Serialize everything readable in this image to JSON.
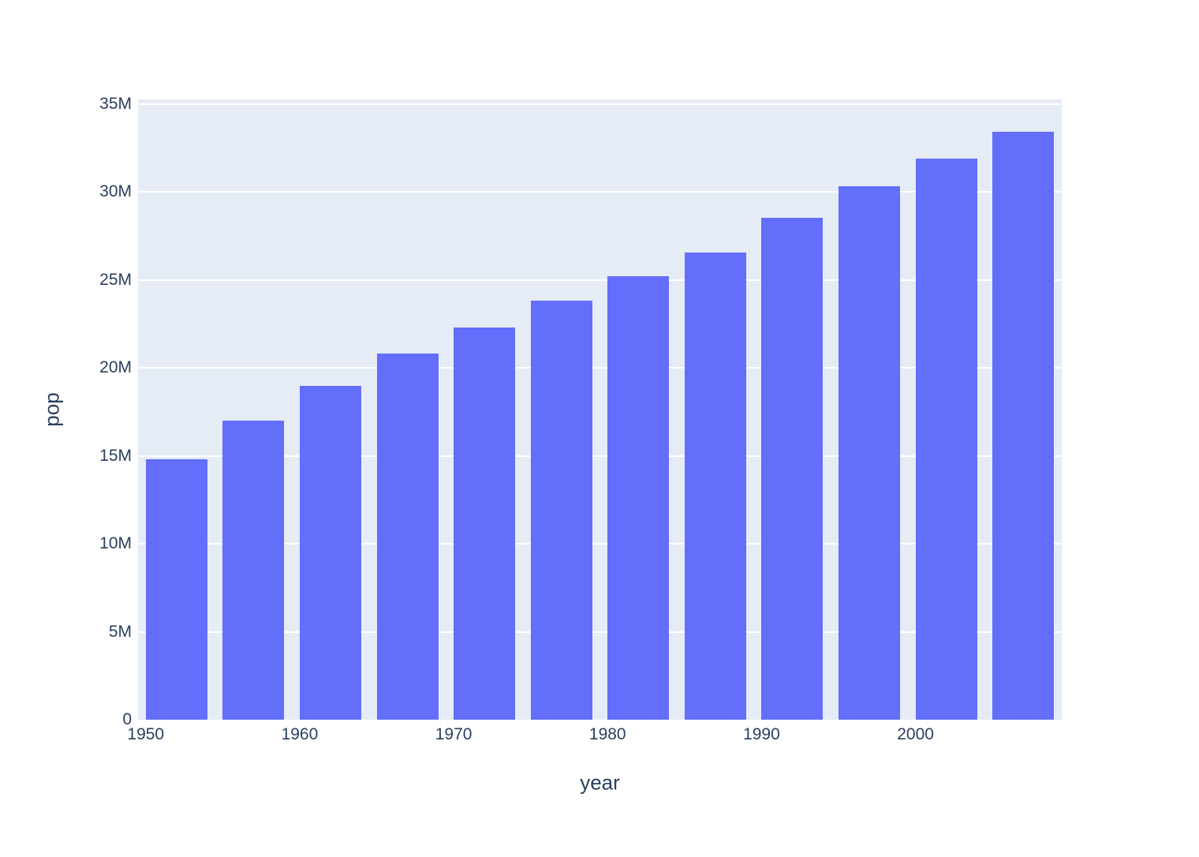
{
  "chart_data": {
    "type": "bar",
    "title": "",
    "xlabel": "year",
    "ylabel": "pop",
    "x": [
      1952,
      1957,
      1962,
      1967,
      1972,
      1977,
      1982,
      1987,
      1992,
      1997,
      2002,
      2007
    ],
    "values": [
      14785584,
      17010154,
      18985849,
      20819767,
      22284500,
      23796400,
      25201900,
      26549700,
      28523502,
      30305843,
      31902268,
      33390141
    ],
    "bar_width_years": 4,
    "xlim": [
      1949.5,
      2009.5
    ],
    "ylim": [
      0,
      35250000
    ],
    "x_ticks": [
      {
        "value": 1950,
        "label": "1950"
      },
      {
        "value": 1960,
        "label": "1960"
      },
      {
        "value": 1970,
        "label": "1970"
      },
      {
        "value": 1980,
        "label": "1980"
      },
      {
        "value": 1990,
        "label": "1990"
      },
      {
        "value": 2000,
        "label": "2000"
      }
    ],
    "y_ticks": [
      {
        "value": 0,
        "label": "0"
      },
      {
        "value": 5000000,
        "label": "5M"
      },
      {
        "value": 10000000,
        "label": "10M"
      },
      {
        "value": 15000000,
        "label": "15M"
      },
      {
        "value": 20000000,
        "label": "20M"
      },
      {
        "value": 25000000,
        "label": "25M"
      },
      {
        "value": 30000000,
        "label": "30M"
      },
      {
        "value": 35000000,
        "label": "35M"
      }
    ],
    "grid": true,
    "legend": false
  },
  "style": {
    "bar_color": "#636efa",
    "plot_bg": "#e5ecf6",
    "grid_color": "#ffffff",
    "text_color": "#2a3f5f",
    "paper_bg": "#ffffff"
  }
}
